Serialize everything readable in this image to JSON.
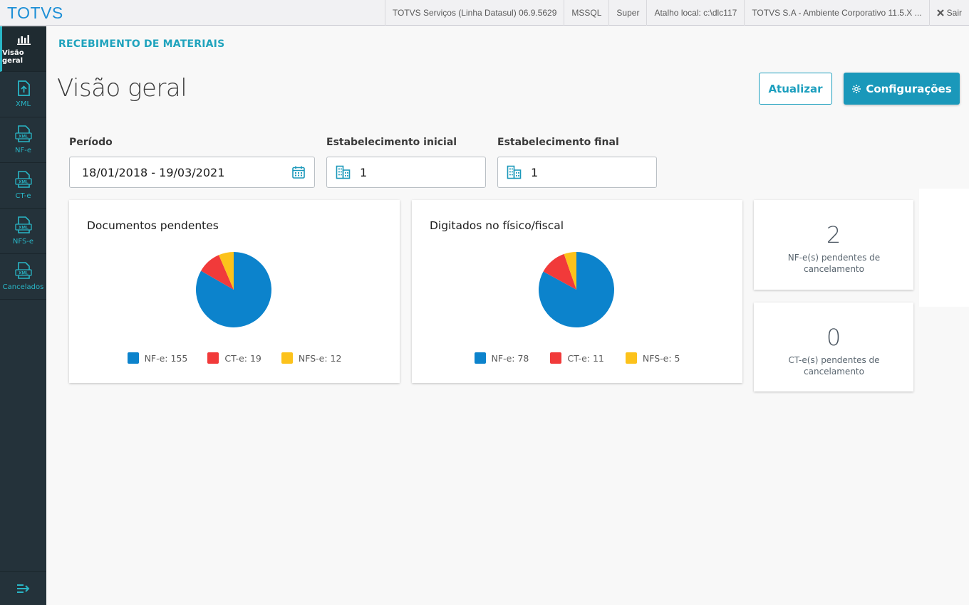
{
  "header": {
    "logo": "TOTVS",
    "items": [
      "TOTVS Serviços (Linha Datasul) 06.9.5629",
      "MSSQL",
      "Super",
      "Atalho local: c:\\dlc117",
      "TOTVS S.A - Ambiente Corporativo 11.5.X ..."
    ],
    "exit_label": "Sair"
  },
  "sidebar": {
    "items": [
      {
        "label": "Visão geral",
        "icon": "bar-chart-icon"
      },
      {
        "label": "XML",
        "icon": "upload-file-icon"
      },
      {
        "label": "NF-e",
        "icon": "xml-file-icon"
      },
      {
        "label": "CT-e",
        "icon": "xml-file-icon"
      },
      {
        "label": "NFS-e",
        "icon": "xml-file-icon"
      },
      {
        "label": "Cancelados",
        "icon": "xml-file-icon"
      }
    ],
    "file_badge": "XML"
  },
  "main": {
    "breadcrumb": "RECEBIMENTO DE MATERIAIS",
    "title": "Visão geral",
    "refresh_label": "Atualizar",
    "settings_label": "Configurações",
    "filters": {
      "period_label": "Período",
      "period_value": "18/01/2018 - 19/03/2021",
      "start_label": "Estabelecimento inicial",
      "start_value": "1",
      "end_label": "Estabelecimento final",
      "end_value": "1"
    },
    "stats": [
      {
        "value": "2",
        "text": "NF-e(s) pendentes de cancelamento"
      },
      {
        "value": "0",
        "text": "CT-e(s) pendentes de cancelamento"
      }
    ]
  },
  "colors": {
    "nfe": "#0c83cc",
    "cte": "#f13a3a",
    "nfse": "#fcc21b",
    "accent": "#1a98ba"
  },
  "chart_data": [
    {
      "type": "pie",
      "title": "Documentos pendentes",
      "categories": [
        "NF-e",
        "CT-e",
        "NFS-e"
      ],
      "values": [
        155,
        19,
        12
      ],
      "legend": [
        "NF-e: 155",
        "CT-e: 19",
        "NFS-e: 12"
      ],
      "legend_placement": "bottom"
    },
    {
      "type": "pie",
      "title": "Digitados no físico/fiscal",
      "categories": [
        "NF-e",
        "CT-e",
        "NFS-e"
      ],
      "values": [
        78,
        11,
        5
      ],
      "legend": [
        "NF-e: 78",
        "CT-e: 11",
        "NFS-e: 5"
      ],
      "legend_placement": "bottom"
    }
  ]
}
